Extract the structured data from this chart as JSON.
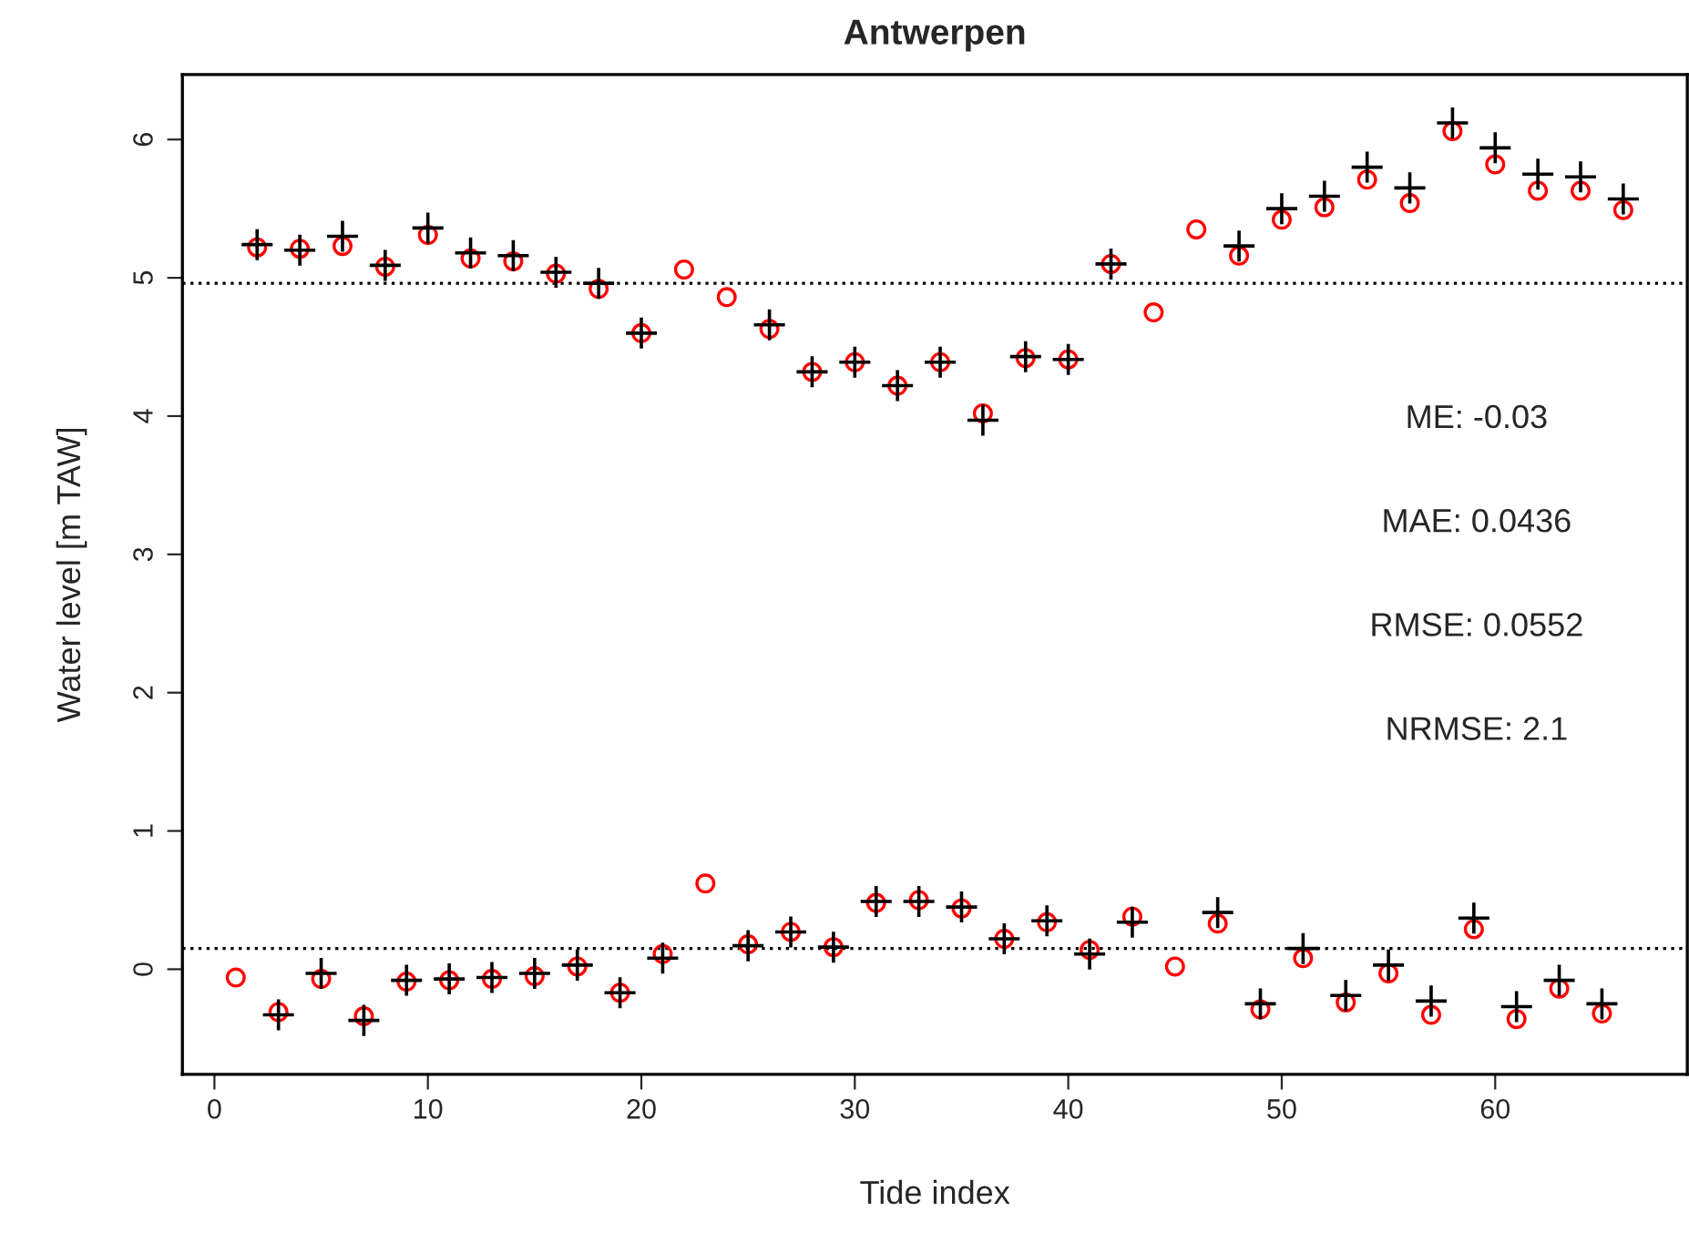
{
  "chart_data": {
    "type": "scatter",
    "title": "Antwerpen",
    "xlabel": "Tide index",
    "ylabel": "Water level [m TAW]",
    "x": [
      1,
      2,
      3,
      4,
      5,
      6,
      7,
      8,
      9,
      10,
      11,
      12,
      13,
      14,
      15,
      16,
      17,
      18,
      19,
      20,
      21,
      22,
      23,
      24,
      25,
      26,
      27,
      28,
      29,
      30,
      31,
      32,
      33,
      34,
      35,
      36,
      37,
      38,
      39,
      40,
      41,
      42,
      43,
      44,
      45,
      46,
      47,
      48,
      49,
      50,
      51,
      52,
      53,
      54,
      55,
      56,
      57,
      58,
      59,
      60,
      61,
      62,
      63,
      64,
      65,
      66
    ],
    "series": [
      {
        "color": "#ff0000",
        "marker": "circle",
        "values": [
          -0.06,
          5.22,
          -0.31,
          5.21,
          -0.07,
          5.23,
          -0.34,
          5.08,
          -0.09,
          5.31,
          -0.08,
          5.14,
          -0.07,
          5.12,
          -0.05,
          5.03,
          0.02,
          4.92,
          -0.17,
          4.6,
          0.11,
          5.06,
          0.62,
          4.86,
          0.18,
          4.63,
          0.27,
          4.32,
          0.16,
          4.39,
          0.48,
          4.22,
          0.5,
          4.39,
          0.44,
          4.02,
          0.22,
          4.42,
          0.34,
          4.41,
          0.14,
          5.1,
          0.38,
          4.75,
          0.02,
          5.35,
          0.33,
          5.16,
          -0.29,
          5.42,
          0.08,
          5.51,
          -0.24,
          5.71,
          -0.03,
          5.54,
          -0.33,
          6.06,
          0.29,
          5.82,
          -0.36,
          5.63,
          -0.14,
          5.63,
          -0.32,
          5.49
        ]
      },
      {
        "color": "#000000",
        "marker": "cross",
        "values": [
          null,
          5.24,
          -0.33,
          5.2,
          -0.03,
          5.3,
          -0.37,
          5.09,
          -0.08,
          5.36,
          -0.07,
          5.18,
          -0.06,
          5.16,
          -0.03,
          5.04,
          0.03,
          4.96,
          -0.17,
          4.6,
          0.08,
          null,
          null,
          null,
          0.17,
          4.66,
          0.27,
          4.32,
          0.16,
          4.39,
          0.49,
          4.22,
          0.49,
          4.39,
          0.45,
          3.97,
          0.22,
          4.43,
          0.35,
          4.41,
          0.11,
          5.1,
          0.34,
          null,
          null,
          null,
          0.41,
          5.23,
          -0.25,
          5.5,
          0.15,
          5.59,
          -0.19,
          5.8,
          0.03,
          5.65,
          -0.23,
          6.12,
          0.37,
          5.94,
          -0.27,
          5.75,
          -0.08,
          5.73,
          -0.25,
          5.57
        ]
      }
    ],
    "ref_lines": [
      {
        "axis": "y",
        "value": 4.96,
        "line_style": "dotted",
        "color": "#000000"
      },
      {
        "axis": "y",
        "value": 0.15,
        "line_style": "dotted",
        "color": "#000000"
      }
    ],
    "annotations": [
      "ME: -0.03",
      "MAE: 0.0436",
      "RMSE: 0.0552",
      "NRMSE: 2.1"
    ],
    "xlim": [
      -1.5,
      69
    ],
    "ylim": [
      -0.76,
      6.47
    ],
    "xticks": [
      0,
      10,
      20,
      30,
      40,
      50,
      60
    ],
    "yticks": [
      0,
      1,
      2,
      3,
      4,
      5,
      6
    ],
    "grid": false,
    "legend": false
  }
}
